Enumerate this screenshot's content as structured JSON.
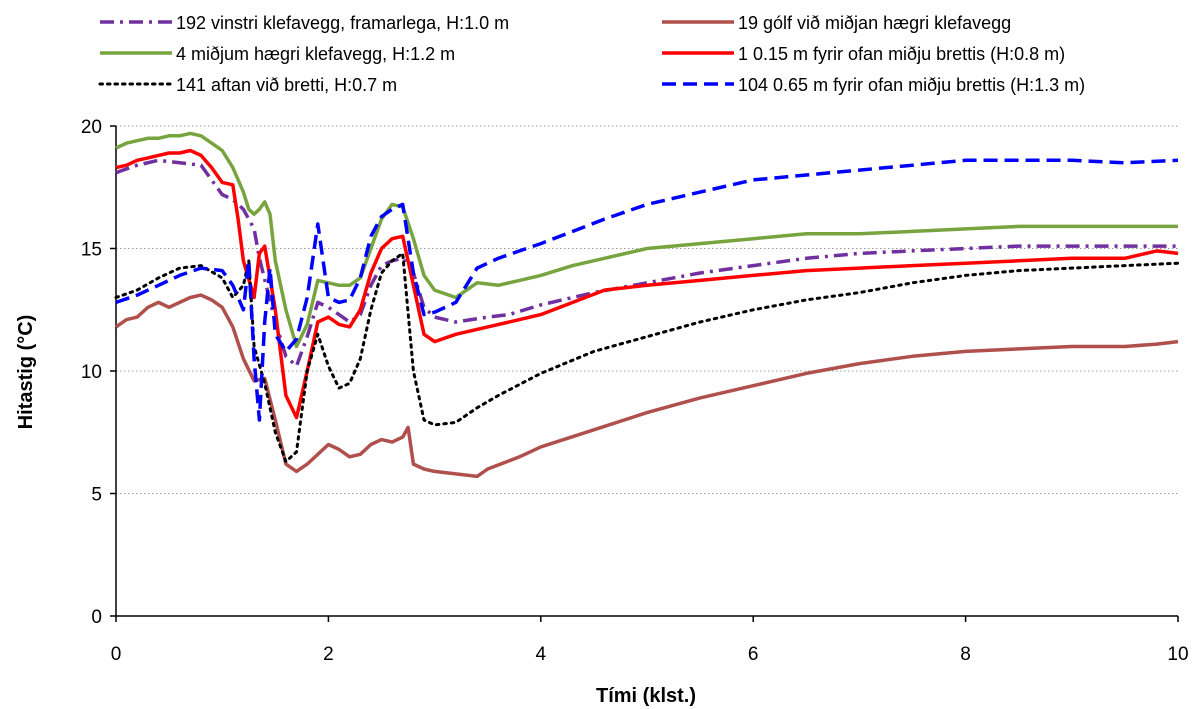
{
  "chart_data": {
    "type": "line",
    "xlabel": "Tími (klst.)",
    "ylabel": "Hitastig (°C)",
    "xlim": [
      0,
      10
    ],
    "ylim": [
      0,
      20
    ],
    "xticks": [
      0,
      2,
      4,
      6,
      8,
      10
    ],
    "yticks": [
      0,
      5,
      10,
      15,
      20
    ],
    "grid": "horizontal-dotted",
    "legend_position": "top",
    "series": [
      {
        "name": "192 vinstri klefavegg, framarlega, H:1.0 m",
        "color": "#7030A0",
        "dash": "dash-dot",
        "points": [
          [
            0,
            18.1
          ],
          [
            0.2,
            18.4
          ],
          [
            0.4,
            18.6
          ],
          [
            0.6,
            18.5
          ],
          [
            0.8,
            18.4
          ],
          [
            1.0,
            17.2
          ],
          [
            1.1,
            17.0
          ],
          [
            1.2,
            16.6
          ],
          [
            1.3,
            15.8
          ],
          [
            1.35,
            14.6
          ],
          [
            1.5,
            12.0
          ],
          [
            1.6,
            10.6
          ],
          [
            1.7,
            10.2
          ],
          [
            1.8,
            11.4
          ],
          [
            1.9,
            12.8
          ],
          [
            2.0,
            12.6
          ],
          [
            2.1,
            12.3
          ],
          [
            2.2,
            12.0
          ],
          [
            2.3,
            12.3
          ],
          [
            2.4,
            13.5
          ],
          [
            2.5,
            14.3
          ],
          [
            2.6,
            14.5
          ],
          [
            2.7,
            14.6
          ],
          [
            2.8,
            14.0
          ],
          [
            2.9,
            12.6
          ],
          [
            3.0,
            12.2
          ],
          [
            3.2,
            12.0
          ],
          [
            3.5,
            12.2
          ],
          [
            3.7,
            12.3
          ],
          [
            4.0,
            12.7
          ],
          [
            4.5,
            13.2
          ],
          [
            5.0,
            13.6
          ],
          [
            5.5,
            14.0
          ],
          [
            6.0,
            14.3
          ],
          [
            6.5,
            14.6
          ],
          [
            7.0,
            14.8
          ],
          [
            7.5,
            14.9
          ],
          [
            8.0,
            15.0
          ],
          [
            8.5,
            15.1
          ],
          [
            9.0,
            15.1
          ],
          [
            9.5,
            15.1
          ],
          [
            10.0,
            15.1
          ]
        ]
      },
      {
        "name": "19 gólf við miðjan hægri klefavegg",
        "color": "#B0504C",
        "dash": "solid",
        "points": [
          [
            0,
            11.8
          ],
          [
            0.1,
            12.1
          ],
          [
            0.2,
            12.2
          ],
          [
            0.3,
            12.6
          ],
          [
            0.4,
            12.8
          ],
          [
            0.5,
            12.6
          ],
          [
            0.6,
            12.8
          ],
          [
            0.7,
            13.0
          ],
          [
            0.8,
            13.1
          ],
          [
            0.9,
            12.9
          ],
          [
            1.0,
            12.6
          ],
          [
            1.1,
            11.8
          ],
          [
            1.2,
            10.5
          ],
          [
            1.3,
            9.6
          ],
          [
            1.4,
            9.7
          ],
          [
            1.5,
            8.0
          ],
          [
            1.6,
            6.2
          ],
          [
            1.7,
            5.9
          ],
          [
            1.8,
            6.2
          ],
          [
            1.9,
            6.6
          ],
          [
            2.0,
            7.0
          ],
          [
            2.1,
            6.8
          ],
          [
            2.2,
            6.5
          ],
          [
            2.3,
            6.6
          ],
          [
            2.4,
            7.0
          ],
          [
            2.5,
            7.2
          ],
          [
            2.6,
            7.1
          ],
          [
            2.7,
            7.3
          ],
          [
            2.75,
            7.7
          ],
          [
            2.8,
            6.2
          ],
          [
            2.9,
            6.0
          ],
          [
            3.0,
            5.9
          ],
          [
            3.2,
            5.8
          ],
          [
            3.4,
            5.7
          ],
          [
            3.5,
            6.0
          ],
          [
            3.8,
            6.5
          ],
          [
            4.0,
            6.9
          ],
          [
            4.5,
            7.6
          ],
          [
            5.0,
            8.3
          ],
          [
            5.5,
            8.9
          ],
          [
            6.0,
            9.4
          ],
          [
            6.5,
            9.9
          ],
          [
            7.0,
            10.3
          ],
          [
            7.5,
            10.6
          ],
          [
            8.0,
            10.8
          ],
          [
            8.5,
            10.9
          ],
          [
            9.0,
            11.0
          ],
          [
            9.5,
            11.0
          ],
          [
            9.8,
            11.1
          ],
          [
            10.0,
            11.2
          ]
        ]
      },
      {
        "name": "4 miðjum hægri klefavegg, H:1.2 m",
        "color": "#77A43E",
        "dash": "solid",
        "points": [
          [
            0,
            19.1
          ],
          [
            0.1,
            19.3
          ],
          [
            0.2,
            19.4
          ],
          [
            0.3,
            19.5
          ],
          [
            0.4,
            19.5
          ],
          [
            0.5,
            19.6
          ],
          [
            0.6,
            19.6
          ],
          [
            0.7,
            19.7
          ],
          [
            0.8,
            19.6
          ],
          [
            0.9,
            19.3
          ],
          [
            1.0,
            19.0
          ],
          [
            1.1,
            18.3
          ],
          [
            1.2,
            17.3
          ],
          [
            1.25,
            16.6
          ],
          [
            1.3,
            16.4
          ],
          [
            1.35,
            16.6
          ],
          [
            1.4,
            16.9
          ],
          [
            1.45,
            16.4
          ],
          [
            1.5,
            14.5
          ],
          [
            1.6,
            12.5
          ],
          [
            1.7,
            11.0
          ],
          [
            1.8,
            11.9
          ],
          [
            1.9,
            13.7
          ],
          [
            2.0,
            13.6
          ],
          [
            2.1,
            13.5
          ],
          [
            2.2,
            13.5
          ],
          [
            2.3,
            13.8
          ],
          [
            2.4,
            15.0
          ],
          [
            2.5,
            16.2
          ],
          [
            2.6,
            16.8
          ],
          [
            2.7,
            16.7
          ],
          [
            2.8,
            15.4
          ],
          [
            2.9,
            13.9
          ],
          [
            3.0,
            13.3
          ],
          [
            3.2,
            13.0
          ],
          [
            3.4,
            13.6
          ],
          [
            3.6,
            13.5
          ],
          [
            3.8,
            13.7
          ],
          [
            4.0,
            13.9
          ],
          [
            4.3,
            14.3
          ],
          [
            4.6,
            14.6
          ],
          [
            5.0,
            15.0
          ],
          [
            5.5,
            15.2
          ],
          [
            6.0,
            15.4
          ],
          [
            6.5,
            15.6
          ],
          [
            7.0,
            15.6
          ],
          [
            7.5,
            15.7
          ],
          [
            8.0,
            15.8
          ],
          [
            8.5,
            15.9
          ],
          [
            9.0,
            15.9
          ],
          [
            9.5,
            15.9
          ],
          [
            10.0,
            15.9
          ]
        ]
      },
      {
        "name": "1 0.15 m fyrir ofan miðju brettis (H:0.8 m)",
        "color": "#FF0000",
        "dash": "solid",
        "points": [
          [
            0,
            18.3
          ],
          [
            0.1,
            18.4
          ],
          [
            0.2,
            18.6
          ],
          [
            0.3,
            18.7
          ],
          [
            0.4,
            18.8
          ],
          [
            0.5,
            18.9
          ],
          [
            0.6,
            18.9
          ],
          [
            0.7,
            19.0
          ],
          [
            0.8,
            18.8
          ],
          [
            0.9,
            18.3
          ],
          [
            1.0,
            17.7
          ],
          [
            1.1,
            17.6
          ],
          [
            1.15,
            16.2
          ],
          [
            1.2,
            14.5
          ],
          [
            1.3,
            13.0
          ],
          [
            1.35,
            14.8
          ],
          [
            1.4,
            15.1
          ],
          [
            1.5,
            12.5
          ],
          [
            1.6,
            9.0
          ],
          [
            1.7,
            8.1
          ],
          [
            1.8,
            10.0
          ],
          [
            1.9,
            12.0
          ],
          [
            2.0,
            12.2
          ],
          [
            2.1,
            11.9
          ],
          [
            2.2,
            11.8
          ],
          [
            2.3,
            12.5
          ],
          [
            2.4,
            14.0
          ],
          [
            2.5,
            15.0
          ],
          [
            2.6,
            15.4
          ],
          [
            2.7,
            15.5
          ],
          [
            2.8,
            13.5
          ],
          [
            2.9,
            11.5
          ],
          [
            3.0,
            11.2
          ],
          [
            3.2,
            11.5
          ],
          [
            3.5,
            11.8
          ],
          [
            3.8,
            12.1
          ],
          [
            4.0,
            12.3
          ],
          [
            4.3,
            12.8
          ],
          [
            4.6,
            13.3
          ],
          [
            5.0,
            13.5
          ],
          [
            5.5,
            13.7
          ],
          [
            6.0,
            13.9
          ],
          [
            6.5,
            14.1
          ],
          [
            7.0,
            14.2
          ],
          [
            7.5,
            14.3
          ],
          [
            8.0,
            14.4
          ],
          [
            8.5,
            14.5
          ],
          [
            9.0,
            14.6
          ],
          [
            9.5,
            14.6
          ],
          [
            9.8,
            14.9
          ],
          [
            10.0,
            14.8
          ]
        ]
      },
      {
        "name": "141 aftan við bretti, H:0.7 m",
        "color": "#000000",
        "dash": "dotted",
        "points": [
          [
            0,
            13.0
          ],
          [
            0.2,
            13.3
          ],
          [
            0.4,
            13.8
          ],
          [
            0.6,
            14.2
          ],
          [
            0.8,
            14.3
          ],
          [
            1.0,
            13.8
          ],
          [
            1.1,
            13.0
          ],
          [
            1.2,
            13.5
          ],
          [
            1.25,
            14.5
          ],
          [
            1.3,
            11.0
          ],
          [
            1.4,
            9.5
          ],
          [
            1.5,
            7.5
          ],
          [
            1.6,
            6.3
          ],
          [
            1.7,
            6.7
          ],
          [
            1.8,
            10.0
          ],
          [
            1.9,
            11.5
          ],
          [
            2.0,
            10.2
          ],
          [
            2.1,
            9.3
          ],
          [
            2.2,
            9.5
          ],
          [
            2.3,
            10.5
          ],
          [
            2.4,
            12.5
          ],
          [
            2.5,
            14.0
          ],
          [
            2.6,
            14.5
          ],
          [
            2.7,
            14.8
          ],
          [
            2.8,
            10.0
          ],
          [
            2.9,
            8.0
          ],
          [
            3.0,
            7.8
          ],
          [
            3.2,
            7.9
          ],
          [
            3.4,
            8.5
          ],
          [
            3.6,
            9.0
          ],
          [
            4.0,
            9.9
          ],
          [
            4.5,
            10.8
          ],
          [
            5.0,
            11.4
          ],
          [
            5.5,
            12.0
          ],
          [
            6.0,
            12.5
          ],
          [
            6.5,
            12.9
          ],
          [
            7.0,
            13.2
          ],
          [
            7.5,
            13.6
          ],
          [
            8.0,
            13.9
          ],
          [
            8.5,
            14.1
          ],
          [
            9.0,
            14.2
          ],
          [
            9.5,
            14.3
          ],
          [
            10.0,
            14.4
          ]
        ]
      },
      {
        "name": "104 0.65 m fyrir ofan miðju brettis (H:1.3 m)",
        "color": "#0000FF",
        "dash": "dashed",
        "points": [
          [
            0,
            12.8
          ],
          [
            0.2,
            13.1
          ],
          [
            0.4,
            13.5
          ],
          [
            0.6,
            13.9
          ],
          [
            0.8,
            14.2
          ],
          [
            1.0,
            14.1
          ],
          [
            1.1,
            13.5
          ],
          [
            1.2,
            12.5
          ],
          [
            1.25,
            14.5
          ],
          [
            1.3,
            10.5
          ],
          [
            1.35,
            8.0
          ],
          [
            1.4,
            12.0
          ],
          [
            1.45,
            14.2
          ],
          [
            1.5,
            11.5
          ],
          [
            1.6,
            10.8
          ],
          [
            1.7,
            11.3
          ],
          [
            1.8,
            13.0
          ],
          [
            1.9,
            16.0
          ],
          [
            2.0,
            13.0
          ],
          [
            2.1,
            12.8
          ],
          [
            2.2,
            12.9
          ],
          [
            2.3,
            13.8
          ],
          [
            2.4,
            15.5
          ],
          [
            2.5,
            16.3
          ],
          [
            2.6,
            16.6
          ],
          [
            2.7,
            16.8
          ],
          [
            2.8,
            14.0
          ],
          [
            2.9,
            12.3
          ],
          [
            3.0,
            12.4
          ],
          [
            3.2,
            12.8
          ],
          [
            3.4,
            14.2
          ],
          [
            3.6,
            14.6
          ],
          [
            3.8,
            14.9
          ],
          [
            4.0,
            15.2
          ],
          [
            4.3,
            15.7
          ],
          [
            4.6,
            16.2
          ],
          [
            5.0,
            16.8
          ],
          [
            5.5,
            17.3
          ],
          [
            6.0,
            17.8
          ],
          [
            6.5,
            18.0
          ],
          [
            7.0,
            18.2
          ],
          [
            7.5,
            18.4
          ],
          [
            8.0,
            18.6
          ],
          [
            8.5,
            18.6
          ],
          [
            9.0,
            18.6
          ],
          [
            9.5,
            18.5
          ],
          [
            10.0,
            18.6
          ]
        ]
      }
    ]
  }
}
